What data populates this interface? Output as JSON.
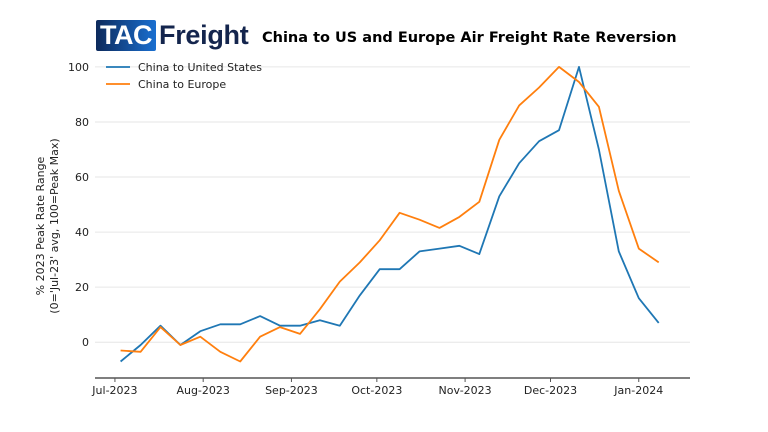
{
  "logo": {
    "part1": "TAC",
    "part2": "Freight"
  },
  "chart_data": {
    "type": "line",
    "title": "China to US and Europe Air Freight Rate Reversion",
    "xlabel": "",
    "ylabel": [
      "% 2023 Peak Rate Range",
      "(0='Jul-23' avg, 100=Peak Max)"
    ],
    "x": [
      "2023-07-03",
      "2023-07-10",
      "2023-07-17",
      "2023-07-24",
      "2023-07-31",
      "2023-08-07",
      "2023-08-14",
      "2023-08-21",
      "2023-08-28",
      "2023-09-04",
      "2023-09-11",
      "2023-09-18",
      "2023-09-25",
      "2023-10-02",
      "2023-10-09",
      "2023-10-16",
      "2023-10-23",
      "2023-10-30",
      "2023-11-06",
      "2023-11-13",
      "2023-11-20",
      "2023-11-27",
      "2023-12-04",
      "2023-12-11",
      "2023-12-18",
      "2023-12-25",
      "2024-01-01",
      "2024-01-08"
    ],
    "x_ticks": [
      {
        "date": "2023-07-01",
        "label": "Jul-2023"
      },
      {
        "date": "2023-08-01",
        "label": "Aug-2023"
      },
      {
        "date": "2023-09-01",
        "label": "Sep-2023"
      },
      {
        "date": "2023-10-01",
        "label": "Oct-2023"
      },
      {
        "date": "2023-11-01",
        "label": "Nov-2023"
      },
      {
        "date": "2023-12-01",
        "label": "Dec-2023"
      },
      {
        "date": "2024-01-01",
        "label": "Jan-2024"
      }
    ],
    "xlim": [
      "2023-06-24",
      "2024-01-19"
    ],
    "y_ticks": [
      0,
      20,
      40,
      60,
      80,
      100
    ],
    "ylim": [
      -13,
      102.5
    ],
    "grid": "horizontal",
    "legend": "top-left",
    "series": [
      {
        "name": "China to United States",
        "color": "#1f77b4",
        "values": [
          -7,
          -1,
          6,
          -1,
          4,
          6.5,
          6.5,
          9.5,
          6,
          6,
          8,
          6,
          17,
          26.5,
          26.5,
          33,
          34,
          35,
          32,
          53,
          65,
          73,
          77,
          100,
          70,
          33,
          16,
          7
        ]
      },
      {
        "name": "China to Europe",
        "color": "#ff7f0e",
        "values": [
          -3,
          -3.5,
          5.5,
          -1,
          2,
          -3.5,
          -7,
          2,
          5.5,
          3,
          12,
          22,
          29,
          37,
          47,
          44.5,
          41.5,
          45.5,
          51,
          73.5,
          86,
          92.5,
          100,
          94.5,
          85.5,
          55,
          34,
          29
        ]
      }
    ]
  }
}
